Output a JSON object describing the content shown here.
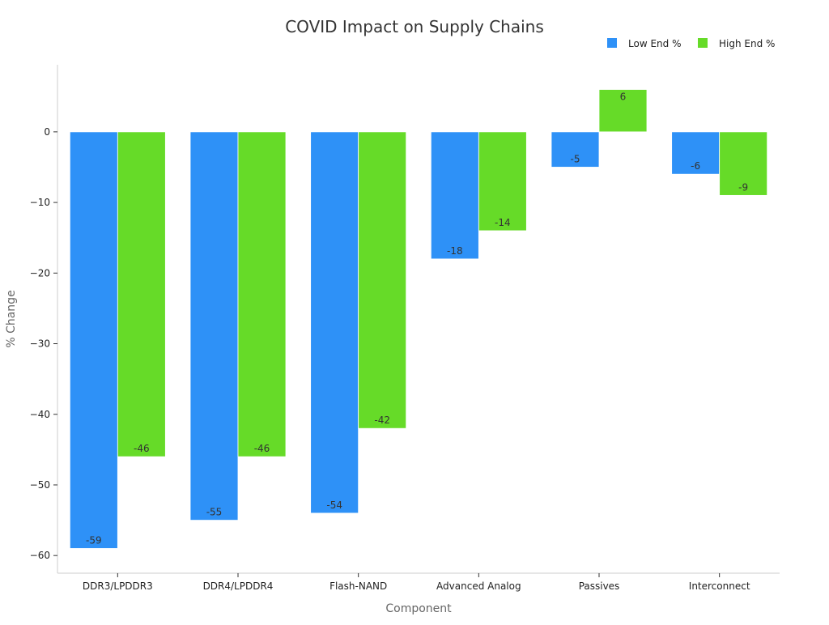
{
  "chart_data": {
    "type": "bar",
    "title": "COVID Impact on Supply Chains",
    "xlabel": "Component",
    "ylabel": "% Change",
    "categories": [
      "DDR3/LPDDR3",
      "DDR4/LPDDR4",
      "Flash-NAND",
      "Advanced Analog",
      "Passives",
      "Interconnect"
    ],
    "series": [
      {
        "name": "Low End %",
        "values": [
          -59,
          -55,
          -54,
          -18,
          -5,
          -6
        ],
        "color": "#2e91f7"
      },
      {
        "name": "High End %",
        "values": [
          -46,
          -46,
          -42,
          -14,
          6,
          -9
        ],
        "color": "#66db28"
      }
    ],
    "ylim": [
      -62.5,
      9.5
    ],
    "yticks": [
      0,
      -10,
      -20,
      -30,
      -40,
      -50,
      -60
    ],
    "ytick_labels": [
      "0",
      "−10",
      "−20",
      "−30",
      "−40",
      "−50",
      "−60"
    ],
    "legend_position": "top-right",
    "grid": false
  }
}
